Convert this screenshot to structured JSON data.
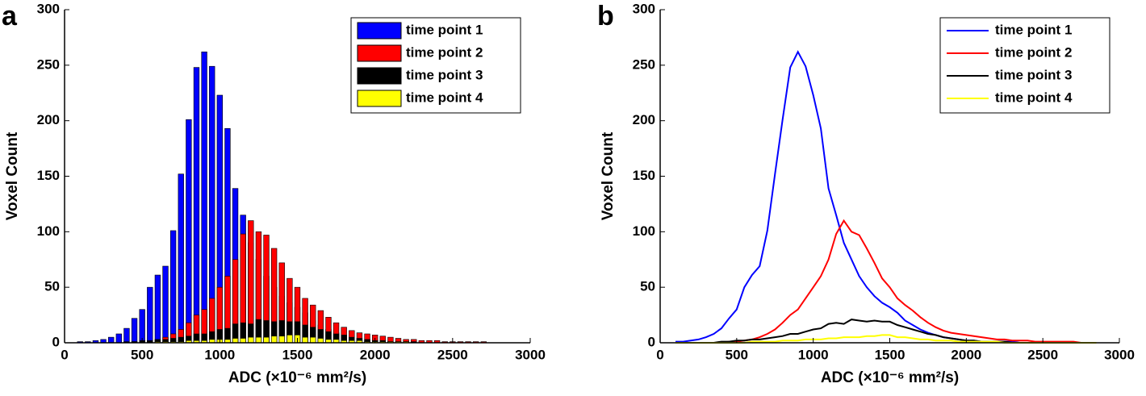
{
  "chart_data": [
    {
      "type": "bar",
      "panel": "a",
      "xlabel": "ADC (×10⁻⁶ mm²/s)",
      "ylabel": "Voxel Count",
      "xlim": [
        0,
        3000
      ],
      "ylim": [
        0,
        300
      ],
      "xticks": [
        0,
        500,
        1000,
        1500,
        2000,
        2500,
        3000
      ],
      "yticks": [
        0,
        50,
        100,
        150,
        200,
        250,
        300
      ],
      "legend": "upper right",
      "x": [
        100,
        150,
        200,
        250,
        300,
        350,
        400,
        450,
        500,
        550,
        600,
        650,
        700,
        750,
        800,
        850,
        900,
        950,
        1000,
        1050,
        1100,
        1150,
        1200,
        1250,
        1300,
        1350,
        1400,
        1450,
        1500,
        1550,
        1600,
        1650,
        1700,
        1750,
        1800,
        1850,
        1900,
        1950,
        2000,
        2050,
        2100,
        2150,
        2200,
        2250,
        2300,
        2350,
        2400,
        2450,
        2500,
        2550,
        2600,
        2650,
        2700,
        2750,
        2800,
        2850
      ],
      "series": [
        {
          "name": "time point 1",
          "color": "#0000ff",
          "values": [
            1,
            1,
            2,
            3,
            5,
            8,
            13,
            22,
            30,
            50,
            61,
            69,
            101,
            152,
            201,
            248,
            262,
            249,
            223,
            193,
            139,
            115,
            90,
            75,
            60,
            50,
            42,
            36,
            32,
            27,
            20,
            16,
            12,
            9,
            7,
            5,
            4,
            3,
            2,
            2,
            1,
            1,
            1,
            1,
            1,
            0,
            0,
            0,
            0,
            0,
            0,
            0,
            0,
            0,
            0,
            0
          ]
        },
        {
          "name": "time point 2",
          "color": "#ff0000",
          "values": [
            0,
            0,
            0,
            0,
            0,
            0,
            0,
            1,
            1,
            2,
            3,
            5,
            8,
            12,
            18,
            25,
            30,
            40,
            50,
            60,
            75,
            98,
            110,
            100,
            97,
            85,
            72,
            58,
            50,
            40,
            34,
            29,
            23,
            18,
            14,
            11,
            9,
            8,
            7,
            6,
            5,
            4,
            3,
            3,
            2,
            2,
            2,
            1,
            1,
            1,
            1,
            1,
            1,
            0,
            0,
            0
          ]
        },
        {
          "name": "time point 3",
          "color": "#000000",
          "values": [
            0,
            0,
            0,
            0,
            0,
            0,
            1,
            1,
            2,
            2,
            3,
            3,
            4,
            5,
            6,
            8,
            8,
            10,
            12,
            13,
            17,
            18,
            17,
            21,
            20,
            19,
            20,
            19,
            19,
            16,
            14,
            12,
            10,
            8,
            7,
            5,
            4,
            3,
            2,
            2,
            1,
            1,
            1,
            1,
            0,
            0,
            0,
            0,
            0,
            0,
            0,
            0,
            0,
            0,
            0,
            0
          ]
        },
        {
          "name": "time point 4",
          "color": "#ffff00",
          "values": [
            0,
            0,
            0,
            0,
            0,
            0,
            0,
            0,
            0,
            0,
            1,
            1,
            1,
            1,
            2,
            2,
            2,
            3,
            3,
            3,
            4,
            4,
            5,
            5,
            5,
            6,
            6,
            7,
            7,
            5,
            5,
            4,
            3,
            3,
            2,
            2,
            2,
            1,
            1,
            1,
            1,
            1,
            1,
            0,
            0,
            0,
            0,
            0,
            0,
            0,
            0,
            0,
            0,
            0,
            0,
            0
          ]
        }
      ]
    },
    {
      "type": "line",
      "panel": "b",
      "xlabel": "ADC (×10⁻⁶ mm²/s)",
      "ylabel": "Voxel Count",
      "xlim": [
        0,
        3000
      ],
      "ylim": [
        0,
        300
      ],
      "xticks": [
        0,
        500,
        1000,
        1500,
        2000,
        2500,
        3000
      ],
      "yticks": [
        0,
        50,
        100,
        150,
        200,
        250,
        300
      ],
      "legend": "upper right",
      "x": [
        100,
        150,
        200,
        250,
        300,
        350,
        400,
        450,
        500,
        550,
        600,
        650,
        700,
        750,
        800,
        850,
        900,
        950,
        1000,
        1050,
        1100,
        1150,
        1200,
        1250,
        1300,
        1350,
        1400,
        1450,
        1500,
        1550,
        1600,
        1650,
        1700,
        1750,
        1800,
        1850,
        1900,
        1950,
        2000,
        2050,
        2100,
        2150,
        2200,
        2250,
        2300,
        2350,
        2400,
        2450,
        2500,
        2550,
        2600,
        2650,
        2700,
        2750,
        2800,
        2850
      ],
      "series": [
        {
          "name": "time point 1",
          "color": "#0000ff",
          "values": [
            1,
            1,
            2,
            3,
            5,
            8,
            13,
            22,
            30,
            50,
            61,
            69,
            101,
            152,
            201,
            248,
            262,
            249,
            223,
            193,
            139,
            115,
            90,
            75,
            60,
            50,
            42,
            36,
            32,
            27,
            20,
            16,
            12,
            9,
            7,
            5,
            4,
            3,
            2,
            2,
            1,
            1,
            1,
            1,
            1,
            0,
            0,
            0,
            0,
            0,
            0,
            0,
            0,
            0,
            0,
            0
          ]
        },
        {
          "name": "time point 2",
          "color": "#ff0000",
          "values": [
            0,
            0,
            0,
            0,
            0,
            0,
            0,
            1,
            1,
            2,
            3,
            5,
            8,
            12,
            18,
            25,
            30,
            40,
            50,
            60,
            75,
            98,
            110,
            100,
            97,
            85,
            72,
            58,
            50,
            40,
            34,
            29,
            23,
            18,
            14,
            11,
            9,
            8,
            7,
            6,
            5,
            4,
            3,
            3,
            2,
            2,
            2,
            1,
            1,
            1,
            1,
            1,
            1,
            0,
            0,
            0
          ]
        },
        {
          "name": "time point 3",
          "color": "#000000",
          "values": [
            0,
            0,
            0,
            0,
            0,
            0,
            1,
            1,
            2,
            2,
            3,
            3,
            4,
            5,
            6,
            8,
            8,
            10,
            12,
            13,
            17,
            18,
            17,
            21,
            20,
            19,
            20,
            19,
            19,
            16,
            14,
            12,
            10,
            8,
            7,
            5,
            4,
            3,
            2,
            2,
            1,
            1,
            1,
            1,
            0,
            0,
            0,
            0,
            0,
            0,
            0,
            0,
            0,
            0,
            0,
            0
          ]
        },
        {
          "name": "time point 4",
          "color": "#ffff00",
          "values": [
            0,
            0,
            0,
            0,
            0,
            0,
            0,
            0,
            0,
            0,
            1,
            1,
            1,
            1,
            2,
            2,
            2,
            3,
            3,
            3,
            4,
            4,
            5,
            5,
            5,
            6,
            6,
            7,
            7,
            5,
            5,
            4,
            3,
            3,
            2,
            2,
            2,
            1,
            1,
            1,
            1,
            1,
            1,
            0,
            0,
            0,
            0,
            0,
            0,
            0,
            0,
            0,
            0,
            0,
            0,
            0
          ]
        }
      ]
    }
  ]
}
